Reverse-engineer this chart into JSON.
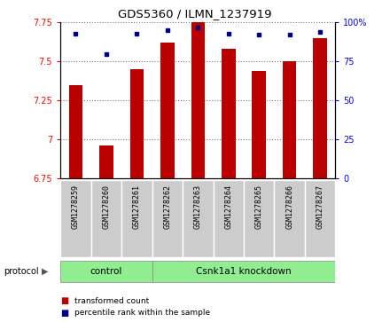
{
  "title": "GDS5360 / ILMN_1237919",
  "samples": [
    "GSM1278259",
    "GSM1278260",
    "GSM1278261",
    "GSM1278262",
    "GSM1278263",
    "GSM1278264",
    "GSM1278265",
    "GSM1278266",
    "GSM1278267"
  ],
  "bar_values": [
    7.35,
    6.96,
    7.45,
    7.62,
    7.75,
    7.58,
    7.44,
    7.5,
    7.65
  ],
  "dot_values": [
    93,
    80,
    93,
    95,
    97,
    93,
    92,
    92,
    94
  ],
  "ylim": [
    6.75,
    7.75
  ],
  "y2lim": [
    0,
    100
  ],
  "yticks": [
    6.75,
    7.0,
    7.25,
    7.5,
    7.75
  ],
  "ytick_labels": [
    "6.75",
    "7",
    "7.25",
    "7.5",
    "7.75"
  ],
  "y2ticks": [
    0,
    25,
    50,
    75,
    100
  ],
  "y2tick_labels": [
    "0",
    "25",
    "50",
    "75",
    "100%"
  ],
  "bar_color": "#BB0000",
  "dot_color": "#00008B",
  "control_label": "control",
  "knockdown_label": "Csnk1a1 knockdown",
  "protocol_label": "protocol",
  "legend_bar_label": "transformed count",
  "legend_dot_label": "percentile rank within the sample",
  "group_box_color": "#90EE90",
  "sample_box_color": "#CCCCCC",
  "figsize": [
    4.4,
    3.63
  ],
  "dpi": 100,
  "n_control": 3,
  "n_knockdown": 6
}
